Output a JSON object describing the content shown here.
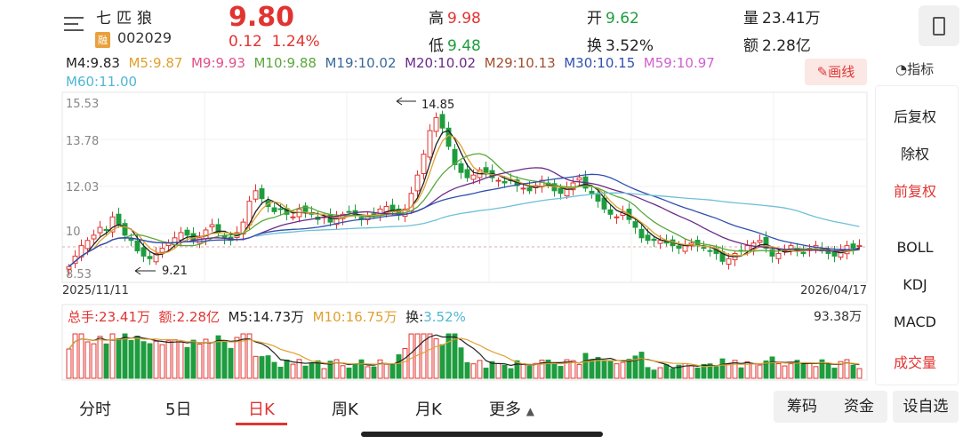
{
  "header": {
    "stock_name": "七匹狼",
    "margin_badge": "融",
    "stock_code": "002029",
    "price": "9.80",
    "change": "0.12",
    "change_pct": "1.24%",
    "high_label": "高",
    "high_value": "9.98",
    "low_label": "低",
    "low_value": "9.48",
    "open_label": "开",
    "open_value": "9.62",
    "turnover_label": "换",
    "turnover_value": "3.52%",
    "volume_label": "量",
    "volume_value": "23.41万",
    "amount_label": "额",
    "amount_value": "2.28亿"
  },
  "ma_legend": {
    "m4": "M4:9.83",
    "m5": "M5:9.87",
    "m9": "M9:9.93",
    "m10": "M10:9.88",
    "m19": "M19:10.02",
    "m20": "M20:10.02",
    "m29": "M29:10.13",
    "m30": "M30:10.15",
    "m59": "M59:10.97",
    "m60": "M60:11.00"
  },
  "draw_button": "画线",
  "indicator_label": "指标",
  "side_menu": {
    "hou_fuquan": "后复权",
    "chuquan": "除权",
    "qian_fuquan": "前复权",
    "boll": "BOLL",
    "kdj": "KDJ",
    "macd": "MACD",
    "volume": "成交量"
  },
  "price_chart": {
    "y_top": "15.53",
    "y_mid1": "13.78",
    "y_mid2": "12.03",
    "y_mid3": "10",
    "y_bottom": "8.53",
    "high_annot": "14.85",
    "low_annot": "9.21",
    "date_start": "2025/11/11",
    "date_end": "2026/04/17"
  },
  "volume_legend": {
    "total": "总手:23.41万",
    "amount": "额:2.28亿",
    "m5": "M5:14.73万",
    "m10": "M10:16.75万",
    "turnover_label": "换:",
    "turnover": "3.52%",
    "max": "93.38万"
  },
  "bottom_tabs": [
    "分时",
    "5日",
    "日K",
    "周K",
    "月K",
    "更多"
  ],
  "bottom_buttons": {
    "chips": "筹码",
    "funds": "资金",
    "watchlist": "设自选"
  },
  "colors": {
    "up": "#e13431",
    "down": "#1e9d3f",
    "ma5": "#e0a030",
    "ma60": "#6ec0d8"
  },
  "chart_data": {
    "type": "candlestick",
    "ylim": [
      8.53,
      15.53
    ],
    "x_range": [
      "2025/11/11",
      "2026/04/17"
    ],
    "annotations": [
      {
        "label": "14.85",
        "kind": "high"
      },
      {
        "label": "9.21",
        "kind": "low"
      }
    ],
    "closes": [
      9.0,
      9.4,
      9.8,
      10.0,
      10.2,
      10.5,
      10.4,
      10.9,
      10.6,
      10.2,
      10.0,
      9.6,
      9.4,
      9.3,
      9.5,
      9.7,
      9.9,
      10.1,
      10.3,
      10.2,
      10.0,
      10.1,
      10.4,
      10.6,
      10.3,
      10.1,
      10.0,
      10.3,
      10.7,
      11.5,
      11.9,
      11.6,
      11.3,
      11.1,
      11.2,
      11.0,
      10.9,
      11.2,
      11.1,
      11.0,
      10.8,
      10.9,
      10.7,
      10.9,
      11.0,
      11.1,
      11.0,
      10.8,
      10.9,
      11.0,
      11.2,
      11.3,
      11.1,
      11.0,
      11.2,
      11.8,
      12.5,
      13.3,
      14.2,
      14.7,
      14.3,
      13.6,
      12.9,
      12.6,
      12.4,
      12.5,
      12.7,
      12.6,
      12.4,
      12.3,
      12.2,
      12.3,
      12.1,
      12.0,
      11.9,
      12.1,
      12.3,
      12.1,
      11.9,
      11.8,
      12.0,
      12.2,
      12.4,
      12.0,
      11.8,
      11.5,
      11.2,
      11.0,
      10.9,
      11.1,
      10.8,
      10.5,
      10.1,
      10.0,
      10.0,
      10.0,
      9.9,
      9.8,
      9.7,
      9.8,
      9.9,
      9.8,
      9.7,
      9.6,
      9.5,
      9.2,
      9.3,
      9.5,
      9.6,
      9.8,
      9.9,
      10.0,
      9.7,
      9.4,
      9.5,
      9.6,
      9.8,
      9.6,
      9.5,
      9.7,
      9.8,
      9.6,
      9.5,
      9.4,
      9.6,
      9.8,
      9.7,
      9.8
    ],
    "volume_max_label": "93.38万"
  }
}
